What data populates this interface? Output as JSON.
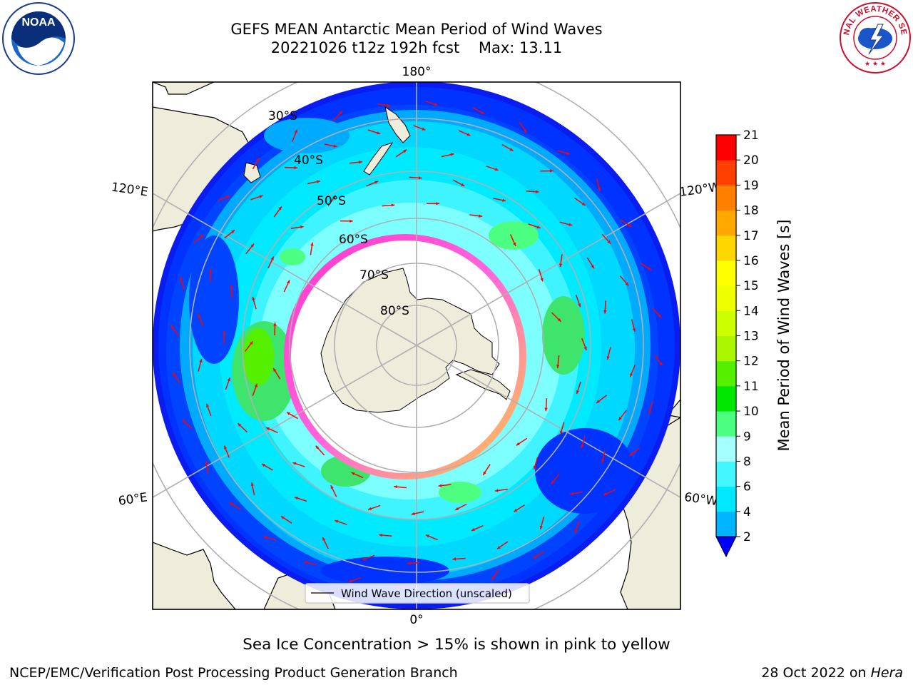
{
  "title": {
    "line1": "GEFS MEAN Antarctic Mean Period of Wind Waves",
    "line2": "20221026 t12z 192h fcst    Max: 13.11"
  },
  "logos": {
    "left": {
      "icon": "noaa-logo-icon",
      "text": "NOAA"
    },
    "right": {
      "icon": "nws-logo-icon",
      "text": "NATIONAL WEATHER SERVICE"
    }
  },
  "map": {
    "projection": "south-polar-stereographic",
    "longitude_labels": {
      "top": "180°",
      "upper_left": "120°E",
      "upper_right": "120°W",
      "lower_left": "60°E",
      "lower_right": "60°W",
      "bottom": "0°"
    },
    "latitude_labels": [
      "30°S",
      "40°S",
      "50°S",
      "60°S",
      "70°S",
      "80°S"
    ],
    "legend_label": "Wind Wave Direction (unscaled)",
    "colors": {
      "land": "#eeecdb",
      "sea_ice_low": "#ff33cc",
      "sea_ice_high": "#ffcc44",
      "arrow": "#ff0000",
      "grid": "#b0b0b0"
    }
  },
  "colorbar": {
    "label": "Mean Period of Wind Waves [s]",
    "ticks": [
      "2",
      "4",
      "6",
      "8",
      "9",
      "10",
      "11",
      "12",
      "13",
      "14",
      "15",
      "16",
      "17",
      "18",
      "19",
      "20",
      "21"
    ],
    "colors": [
      "#0028ff",
      "#00b4ff",
      "#00e8ff",
      "#44f6ff",
      "#a6ffff",
      "#4dff80",
      "#00e600",
      "#55f000",
      "#aaf500",
      "#ccff00",
      "#eeff00",
      "#ffff00",
      "#ffd700",
      "#ffa800",
      "#ff8000",
      "#ff4000",
      "#ff0000"
    ],
    "extend_color": "#0000ff"
  },
  "footer": {
    "sea_ice_note": "Sea Ice Concentration > 15% is shown in pink to yellow",
    "credit": "NCEP/EMC/Verification Post Processing Product Generation Branch",
    "date_text": "28 Oct 2022 on",
    "machine": "Hera"
  }
}
